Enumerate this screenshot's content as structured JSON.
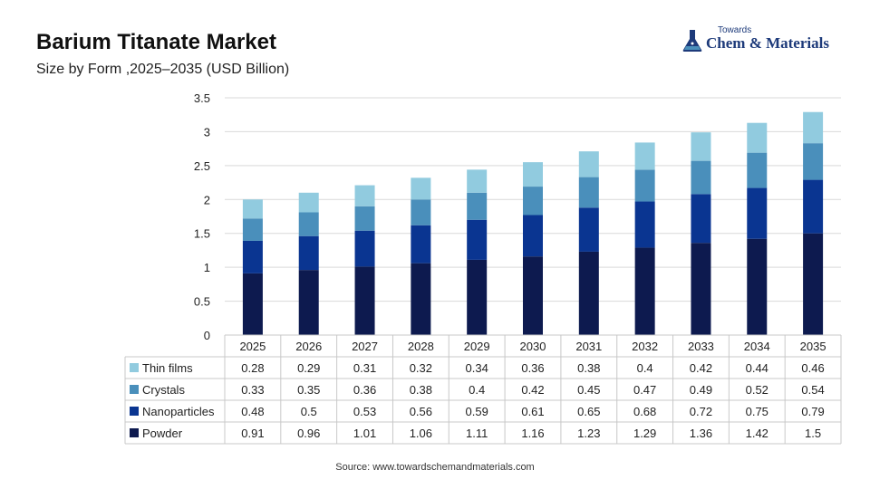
{
  "header": {
    "title": "Barium Titanate Market",
    "subtitle": "Size by Form ,2025–2035 (USD Billion)"
  },
  "logo": {
    "top_text": "Towards",
    "main_text": "Chem & Materials",
    "icon": "flask-icon",
    "color": "#1d3a7a"
  },
  "source": "Source: www.towardschemandmaterials.com",
  "chart_data": {
    "type": "bar",
    "stacked": true,
    "title": "Barium Titanate Market",
    "subtitle": "Size by Form ,2025–2035 (USD Billion)",
    "categories": [
      "2025",
      "2026",
      "2027",
      "2028",
      "2029",
      "2030",
      "2031",
      "2032",
      "2033",
      "2034",
      "2035"
    ],
    "y_ticks": [
      "0",
      "0.5",
      "1",
      "1.5",
      "2",
      "2.5",
      "3",
      "3.5"
    ],
    "ylim": [
      0,
      3.5
    ],
    "grid": true,
    "legend": "data-table",
    "series": [
      {
        "name": "Powder",
        "color": "#0d1a4f",
        "values": [
          0.91,
          0.96,
          1.01,
          1.06,
          1.11,
          1.16,
          1.23,
          1.29,
          1.36,
          1.42,
          1.5
        ]
      },
      {
        "name": "Nanoparticles",
        "color": "#0a3591",
        "values": [
          0.48,
          0.5,
          0.53,
          0.56,
          0.59,
          0.61,
          0.65,
          0.68,
          0.72,
          0.75,
          0.79
        ]
      },
      {
        "name": "Crystals",
        "color": "#4a8fbb",
        "values": [
          0.33,
          0.35,
          0.36,
          0.38,
          0.4,
          0.42,
          0.45,
          0.47,
          0.49,
          0.52,
          0.54
        ]
      },
      {
        "name": "Thin films",
        "color": "#91cbdf",
        "values": [
          0.28,
          0.29,
          0.31,
          0.32,
          0.34,
          0.36,
          0.38,
          0.4,
          0.42,
          0.44,
          0.46
        ]
      }
    ],
    "table_rows": [
      {
        "name": "Thin films",
        "color": "#91cbdf",
        "cells": [
          "0.28",
          "0.29",
          "0.31",
          "0.32",
          "0.34",
          "0.36",
          "0.38",
          "0.4",
          "0.42",
          "0.44",
          "0.46"
        ]
      },
      {
        "name": "Crystals",
        "color": "#4a8fbb",
        "cells": [
          "0.33",
          "0.35",
          "0.36",
          "0.38",
          "0.4",
          "0.42",
          "0.45",
          "0.47",
          "0.49",
          "0.52",
          "0.54"
        ]
      },
      {
        "name": "Nanoparticles",
        "color": "#0a3591",
        "cells": [
          "0.48",
          "0.5",
          "0.53",
          "0.56",
          "0.59",
          "0.61",
          "0.65",
          "0.68",
          "0.72",
          "0.75",
          "0.79"
        ]
      },
      {
        "name": "Powder",
        "color": "#0d1a4f",
        "cells": [
          "0.91",
          "0.96",
          "1.01",
          "1.06",
          "1.11",
          "1.16",
          "1.23",
          "1.29",
          "1.36",
          "1.42",
          "1.5"
        ]
      }
    ]
  }
}
